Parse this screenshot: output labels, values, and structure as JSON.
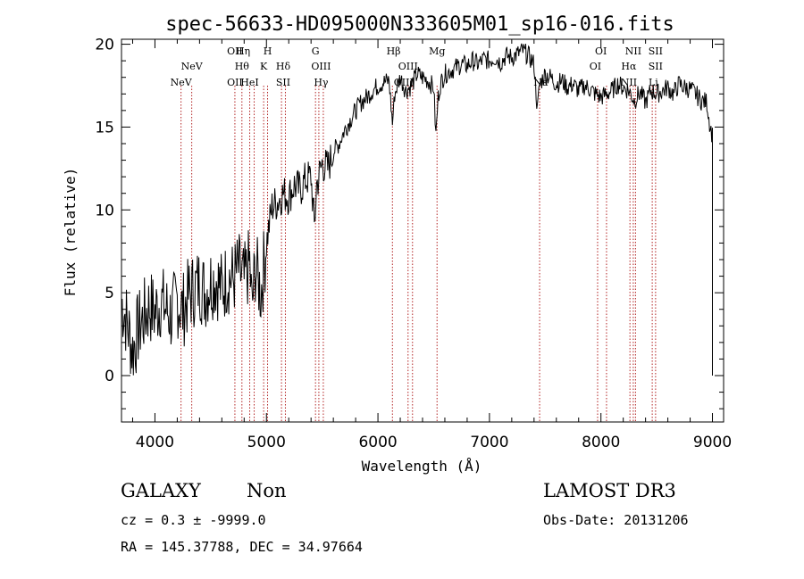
{
  "chart_data": {
    "type": "line",
    "title": "spec-56633-HD095000N333605M01_sp16-016.fits",
    "xlabel": "Wavelength (Å)",
    "ylabel": "Flux (relative)",
    "xlim": [
      3700,
      9100
    ],
    "ylim": [
      -2.8,
      20.3
    ],
    "xticks": [
      4000,
      5000,
      6000,
      7000,
      8000,
      9000
    ],
    "yticks": [
      0,
      5,
      10,
      15,
      20
    ],
    "series": [
      {
        "name": "flux",
        "x": [
          3700,
          3750,
          3800,
          3850,
          3900,
          3950,
          4000,
          4050,
          4100,
          4150,
          4200,
          4250,
          4300,
          4350,
          4400,
          4450,
          4500,
          4550,
          4600,
          4650,
          4700,
          4750,
          4800,
          4850,
          4870,
          4900,
          4950,
          5000,
          5050,
          5100,
          5150,
          5200,
          5250,
          5300,
          5350,
          5400,
          5430,
          5450,
          5500,
          5550,
          5600,
          5650,
          5700,
          5750,
          5800,
          5850,
          5900,
          5950,
          6000,
          6050,
          6100,
          6130,
          6150,
          6200,
          6250,
          6300,
          6350,
          6400,
          6450,
          6500,
          6520,
          6540,
          6560,
          6600,
          6650,
          6700,
          6750,
          6800,
          6850,
          6900,
          6950,
          7000,
          7050,
          7100,
          7150,
          7200,
          7250,
          7300,
          7350,
          7400,
          7430,
          7450,
          7500,
          7550,
          7600,
          7650,
          7700,
          7750,
          7800,
          7850,
          7900,
          7950,
          8000,
          8050,
          8100,
          8150,
          8200,
          8250,
          8300,
          8350,
          8400,
          8450,
          8500,
          8550,
          8600,
          8650,
          8700,
          8750,
          8800,
          8850,
          8900,
          8950,
          8980,
          9000,
          9000
        ],
        "values": [
          4.5,
          3.2,
          1.5,
          2.8,
          3.5,
          4.2,
          3.8,
          4.5,
          4.0,
          3.6,
          4.6,
          3.9,
          4.8,
          5.2,
          5.6,
          5.0,
          5.7,
          5.8,
          5.2,
          6.0,
          5.8,
          6.4,
          5.6,
          6.8,
          4.0,
          6.6,
          5.0,
          8.0,
          10.2,
          10.5,
          11.0,
          10.8,
          11.5,
          11.2,
          11.8,
          12.0,
          9.0,
          11.5,
          12.8,
          12.5,
          13.5,
          14.0,
          14.8,
          15.4,
          16.0,
          16.5,
          16.8,
          17.2,
          17.5,
          17.7,
          17.8,
          15.2,
          17.0,
          18.0,
          17.2,
          17.5,
          18.2,
          18.0,
          17.8,
          17.4,
          14.5,
          16.8,
          17.6,
          18.2,
          18.4,
          18.6,
          18.8,
          18.7,
          19.0,
          18.8,
          19.1,
          19.0,
          19.2,
          18.9,
          19.3,
          19.2,
          19.4,
          19.6,
          19.3,
          18.8,
          16.0,
          17.6,
          18.2,
          18.0,
          17.6,
          17.8,
          17.4,
          17.6,
          17.2,
          17.5,
          17.3,
          17.0,
          16.8,
          17.0,
          17.2,
          17.6,
          17.4,
          17.2,
          16.6,
          17.1,
          16.5,
          17.2,
          17.0,
          17.2,
          17.4,
          17.0,
          17.6,
          17.4,
          17.3,
          17.0,
          16.6,
          16.5,
          15.0,
          14.5,
          0.0
        ]
      }
    ],
    "line_labels": [
      {
        "label": "NeV",
        "wavelength": 4234,
        "row": 2
      },
      {
        "label": "NeV",
        "wavelength": 4330,
        "row": 1
      },
      {
        "label": "OII",
        "wavelength": 4717,
        "row": 0
      },
      {
        "label": "OII",
        "wavelength": 4717,
        "row": 2
      },
      {
        "label": "Hη",
        "wavelength": 4790,
        "row": 0
      },
      {
        "label": "Hθ",
        "wavelength": 4780,
        "row": 1
      },
      {
        "label": "HeI",
        "wavelength": 4850,
        "row": 2
      },
      {
        "label": "H",
        "wavelength": 5010,
        "row": 0
      },
      {
        "label": "K",
        "wavelength": 4975,
        "row": 1
      },
      {
        "label": "Hδ",
        "wavelength": 5150,
        "row": 1
      },
      {
        "label": "SII",
        "wavelength": 5150,
        "row": 2
      },
      {
        "label": "G",
        "wavelength": 5440,
        "row": 0
      },
      {
        "label": "OIII",
        "wavelength": 5490,
        "row": 1
      },
      {
        "label": "Hγ",
        "wavelength": 5490,
        "row": 2
      },
      {
        "label": "Hβ",
        "wavelength": 6140,
        "row": 0
      },
      {
        "label": "OIII",
        "wavelength": 6270,
        "row": 1
      },
      {
        "label": "OIII",
        "wavelength": 6230,
        "row": 2
      },
      {
        "label": "Mg",
        "wavelength": 6530,
        "row": 0
      },
      {
        "label": "Na",
        "wavelength": 7460,
        "row": 2
      },
      {
        "label": "OI",
        "wavelength": 8000,
        "row": 0
      },
      {
        "label": "OI",
        "wavelength": 7950,
        "row": 1
      },
      {
        "label": "NII",
        "wavelength": 8290,
        "row": 0
      },
      {
        "label": "Hα",
        "wavelength": 8250,
        "row": 1
      },
      {
        "label": "NII",
        "wavelength": 8250,
        "row": 2
      },
      {
        "label": "SII",
        "wavelength": 8490,
        "row": 0
      },
      {
        "label": "SII",
        "wavelength": 8490,
        "row": 1
      },
      {
        "label": "Li",
        "wavelength": 8470,
        "row": 2
      }
    ],
    "marker_lines": [
      4234,
      4330,
      4717,
      4780,
      4850,
      4890,
      4975,
      5010,
      5135,
      5170,
      5440,
      5470,
      5510,
      6130,
      6270,
      6310,
      6530,
      7450,
      7970,
      8050,
      8260,
      8290,
      8310,
      8460,
      8490
    ],
    "colors": {
      "spectrum": "#000000",
      "markers": "#b22222",
      "axes": "#000000"
    }
  },
  "info": {
    "object_class": "GALAXY",
    "subclass": "Non",
    "survey": "LAMOST DR3",
    "cz_line": "cz = 0.3 ± -9999.0",
    "obs_date_line": "Obs-Date: 20131206",
    "radec_line": "RA = 145.37788, DEC =  34.97664"
  }
}
